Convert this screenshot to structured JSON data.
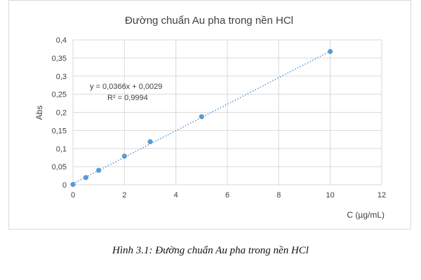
{
  "chart_data": {
    "type": "scatter",
    "title": "Đường chuẩn Au pha trong nền HCl",
    "xlabel": "C (µg/mL)",
    "ylabel": "Abs",
    "xlim": [
      0,
      12
    ],
    "ylim": [
      0,
      0.4
    ],
    "x_ticks": [
      0,
      2,
      4,
      6,
      8,
      10,
      12
    ],
    "y_ticks": [
      0,
      0.05,
      0.1,
      0.15,
      0.2,
      0.25,
      0.3,
      0.35,
      0.4
    ],
    "x_tick_labels": [
      "0",
      "2",
      "4",
      "6",
      "8",
      "10",
      "12"
    ],
    "y_tick_labels": [
      "0",
      "0,05",
      "0,1",
      "0,15",
      "0,2",
      "0,25",
      "0,3",
      "0,35",
      "0,4"
    ],
    "grid": true,
    "series": [
      {
        "x": [
          0,
          0.5,
          1,
          2,
          3,
          5,
          10
        ],
        "y": [
          0.001,
          0.02,
          0.04,
          0.079,
          0.119,
          0.188,
          0.368
        ],
        "color": "#5b9bd5"
      }
    ],
    "trendline": {
      "slope": 0.0366,
      "intercept": 0.0029,
      "x_range": [
        0,
        10
      ],
      "color": "#5b9bd5",
      "style": "dotted"
    },
    "annotations": [
      "y = 0,0366x + 0,0029",
      "R² = 0,9994"
    ]
  },
  "caption": "Hình 3.1: Đường chuẩn Au pha trong nền HCl"
}
